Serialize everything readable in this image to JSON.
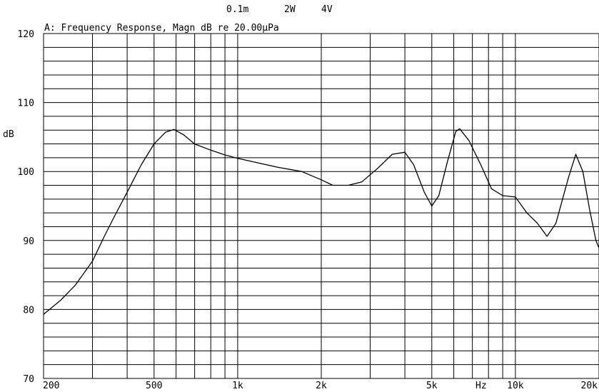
{
  "header": {
    "settings": [
      "0.1m",
      "2W",
      "4V"
    ],
    "title": "A: Frequency Response, Magn dB re 20.00µPa"
  },
  "chart_data": {
    "type": "line",
    "title": "A: Frequency Response, Magn dB re 20.00µPa",
    "xlabel": "Hz",
    "ylabel": "dB",
    "xscale": "log",
    "xlim": [
      200,
      20000
    ],
    "ylim": [
      70,
      120
    ],
    "grid": true,
    "x_tick_labels": [
      {
        "value": 200,
        "label": "200"
      },
      {
        "value": 500,
        "label": "500"
      },
      {
        "value": 1000,
        "label": "1k"
      },
      {
        "value": 2000,
        "label": "2k"
      },
      {
        "value": 5000,
        "label": "5k"
      },
      {
        "value": 10000,
        "label": "10k"
      },
      {
        "value": 20000,
        "label": "20k"
      }
    ],
    "y_ticks": [
      70,
      80,
      90,
      100,
      110,
      120
    ],
    "series": [
      {
        "values": [
          [
            200,
            79.3
          ],
          [
            230,
            81.3
          ],
          [
            260,
            83.5
          ],
          [
            300,
            87.0
          ],
          [
            330,
            90.5
          ],
          [
            360,
            93.5
          ],
          [
            400,
            97.0
          ],
          [
            450,
            101.0
          ],
          [
            500,
            104.0
          ],
          [
            550,
            105.7
          ],
          [
            590,
            106.1
          ],
          [
            640,
            105.3
          ],
          [
            700,
            104.0
          ],
          [
            800,
            103.1
          ],
          [
            900,
            102.4
          ],
          [
            1000,
            101.9
          ],
          [
            1200,
            101.2
          ],
          [
            1400,
            100.6
          ],
          [
            1700,
            100.0
          ],
          [
            2000,
            98.8
          ],
          [
            2200,
            98.0
          ],
          [
            2500,
            98.0
          ],
          [
            2800,
            98.5
          ],
          [
            3200,
            100.5
          ],
          [
            3600,
            102.5
          ],
          [
            4000,
            102.8
          ],
          [
            4300,
            101.0
          ],
          [
            4700,
            97.0
          ],
          [
            5000,
            95.0
          ],
          [
            5300,
            96.5
          ],
          [
            5700,
            101.5
          ],
          [
            6100,
            105.8
          ],
          [
            6300,
            106.2
          ],
          [
            6800,
            104.5
          ],
          [
            7500,
            101.0
          ],
          [
            8200,
            97.5
          ],
          [
            9000,
            96.5
          ],
          [
            10000,
            96.3
          ],
          [
            11000,
            94.0
          ],
          [
            12000,
            92.5
          ],
          [
            13000,
            90.6
          ],
          [
            14000,
            92.5
          ],
          [
            15500,
            99.0
          ],
          [
            16500,
            102.5
          ],
          [
            17500,
            100.0
          ],
          [
            18500,
            94.5
          ],
          [
            19500,
            90.0
          ],
          [
            20000,
            88.9
          ]
        ]
      }
    ]
  }
}
